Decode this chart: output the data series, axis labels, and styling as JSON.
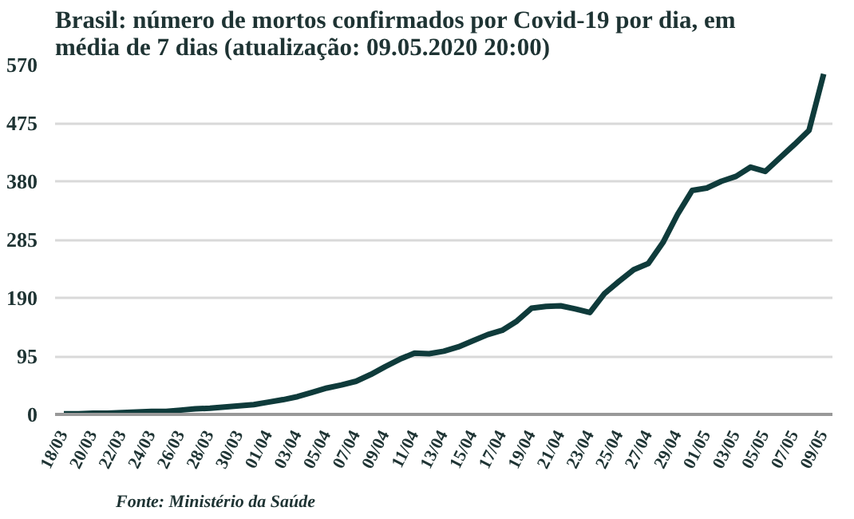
{
  "chart_data": {
    "type": "line",
    "title": "Brasil: número de mortos confirmados por Covid-19 por dia, em média de 7 dias (atualização: 09.05.2020 20:00)",
    "categories": [
      "18/03",
      null,
      "20/03",
      null,
      "22/03",
      null,
      "24/03",
      null,
      "26/03",
      null,
      "28/03",
      null,
      "30/03",
      null,
      "01/04",
      null,
      "03/04",
      null,
      "05/04",
      null,
      "07/04",
      null,
      "09/04",
      null,
      "11/04",
      null,
      "13/04",
      null,
      "15/04",
      null,
      "17/04",
      null,
      "19/04",
      null,
      "21/04",
      null,
      "23/04",
      null,
      "25/04",
      null,
      "27/04",
      null,
      "29/04",
      null,
      "01/05",
      null,
      "03/05",
      null,
      "05/05",
      null,
      "07/05",
      null,
      "09/05"
    ],
    "series": [
      {
        "color": "#0f3b3b",
        "values": [
          1,
          1,
          2,
          2,
          3,
          4,
          5,
          5,
          7,
          9,
          10,
          12,
          14,
          16,
          20,
          24,
          29,
          36,
          43,
          48,
          54,
          65,
          78,
          90,
          100,
          99,
          103,
          110,
          120,
          130,
          137,
          152,
          173,
          176,
          177,
          172,
          166,
          197,
          217,
          236,
          246,
          280,
          326,
          365,
          369,
          380,
          388,
          403,
          396,
          418,
          440,
          463,
          555
        ]
      }
    ],
    "ylim": [
      0,
      570
    ],
    "yticks": [
      0,
      95,
      190,
      285,
      380,
      475,
      570
    ],
    "grid": "y",
    "marker": "none",
    "line_style": "solid",
    "annotations": [
      "Fonte: Ministério da Saúde"
    ]
  }
}
